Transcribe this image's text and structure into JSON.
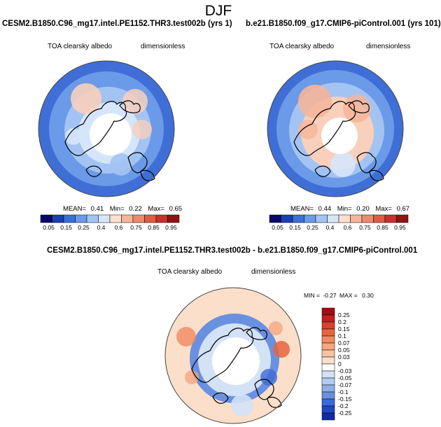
{
  "main_title": "DJF",
  "panels": [
    {
      "title": "CESM2.B1850.C96_mg17.intel.PE1152.THR3.test002b (yrs 1)",
      "field_label": "TOA clearsky albedo",
      "units": "dimensionless",
      "stats": {
        "mean_label": "MEAN=",
        "mean": "0.41",
        "min_label": "Min=",
        "min": "0.22",
        "max_label": "Max=",
        "max": "0.65"
      }
    },
    {
      "title": "b.e21.B1850.f09_g17.CMIP6-piControl.001 (yrs 101)",
      "field_label": "TOA clearsky albedo",
      "units": "dimensionless",
      "stats": {
        "mean_label": "MEAN=",
        "mean": "0.44",
        "min_label": "Min=",
        "min": "0.20",
        "max_label": "Max=",
        "max": "0.67"
      }
    },
    {
      "title": "CESM2.B1850.C96_mg17.intel.PE1152.THR3.test002b - b.e21.B1850.f09_g17.CMIP6-piControl.001",
      "field_label": "TOA clearsky albedo",
      "units": "dimensionless",
      "stats": {
        "min_label": "MIN =",
        "min": "-0.27",
        "max_label": "MAX =",
        "max": "0.30"
      }
    }
  ],
  "chart_data": [
    {
      "type": "heatmap",
      "projection": "north-polar-stereographic",
      "title": "CESM2.B1850.C96_mg17.intel.PE1152.THR3.test002b (yrs 1)",
      "field": "TOA clearsky albedo",
      "units": "dimensionless",
      "mean": 0.41,
      "min": 0.22,
      "max": 0.65,
      "colorbar_levels": [
        "0.05",
        "0.15",
        "0.25",
        "0.4",
        "0.6",
        "0.75",
        "0.85",
        "0.95"
      ],
      "colorbar_colors": [
        "#08086b",
        "#1b3fb5",
        "#3a70d8",
        "#6b9ae8",
        "#a3c4f2",
        "#d6e6fa",
        "#fbe0cf",
        "#f5b59a",
        "#ec8a6c",
        "#df5b45",
        "#c8302c",
        "#8e1313"
      ],
      "legend": "bottom"
    },
    {
      "type": "heatmap",
      "projection": "north-polar-stereographic",
      "title": "b.e21.B1850.f09_g17.CMIP6-piControl.001 (yrs 101)",
      "field": "TOA clearsky albedo",
      "units": "dimensionless",
      "mean": 0.44,
      "min": 0.2,
      "max": 0.67,
      "colorbar_levels": [
        "0.05",
        "0.15",
        "0.25",
        "0.4",
        "0.6",
        "0.75",
        "0.85",
        "0.95"
      ],
      "colorbar_colors": [
        "#08086b",
        "#1b3fb5",
        "#3a70d8",
        "#6b9ae8",
        "#a3c4f2",
        "#d6e6fa",
        "#fbe0cf",
        "#f5b59a",
        "#ec8a6c",
        "#df5b45",
        "#c8302c",
        "#8e1313"
      ],
      "legend": "bottom"
    },
    {
      "type": "heatmap",
      "projection": "north-polar-stereographic",
      "title": "CESM2.B1850.C96_mg17.intel.PE1152.THR3.test002b - b.e21.B1850.f09_g17.CMIP6-piControl.001",
      "field": "TOA clearsky albedo",
      "units": "dimensionless",
      "min": -0.27,
      "max": 0.3,
      "colorbar_levels": [
        "0.25",
        "0.2",
        "0.15",
        "0.1",
        "0.07",
        "0.05",
        "0.03",
        "0",
        "-0.03",
        "-0.05",
        "-0.07",
        "-0.1",
        "-0.15",
        "-0.2",
        "-0.25"
      ],
      "colorbar_colors": [
        "#9b1010",
        "#c02020",
        "#d84030",
        "#e8643f",
        "#f08a60",
        "#f5a77f",
        "#f8c3a2",
        "#fbdfca",
        "#ffffff",
        "#d3e2f7",
        "#b3cbf0",
        "#8fb0e8",
        "#6a90e0",
        "#3d6ad8",
        "#2046c8",
        "#102aa0"
      ],
      "legend": "right"
    }
  ]
}
